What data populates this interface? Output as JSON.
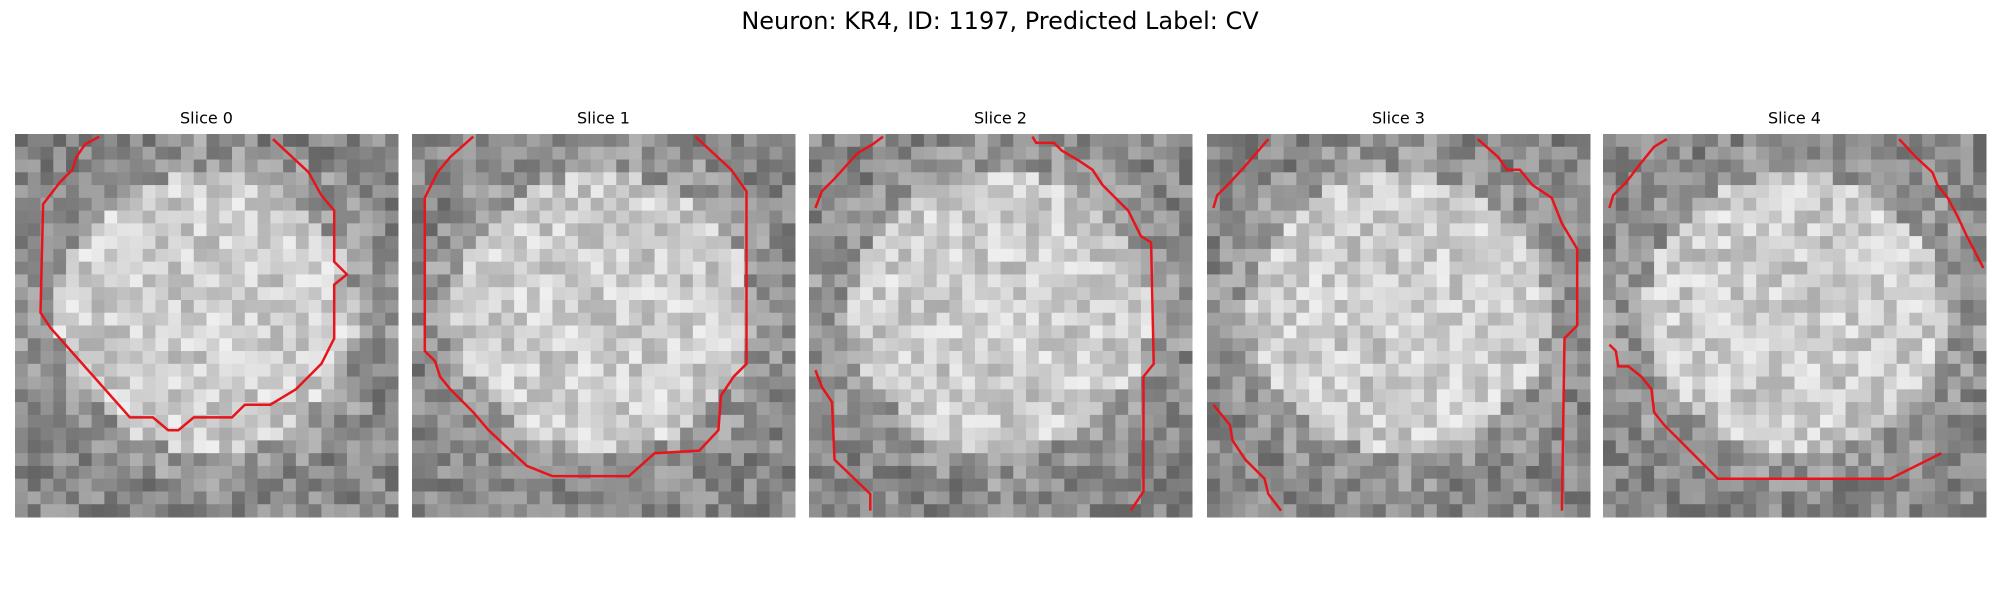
{
  "title": "Neuron: KR4, ID: 1197, Predicted Label: CV",
  "panels": [
    {
      "title": "Slice 0"
    },
    {
      "title": "Slice 1"
    },
    {
      "title": "Slice 2"
    },
    {
      "title": "Slice 3"
    },
    {
      "title": "Slice 4"
    }
  ]
}
